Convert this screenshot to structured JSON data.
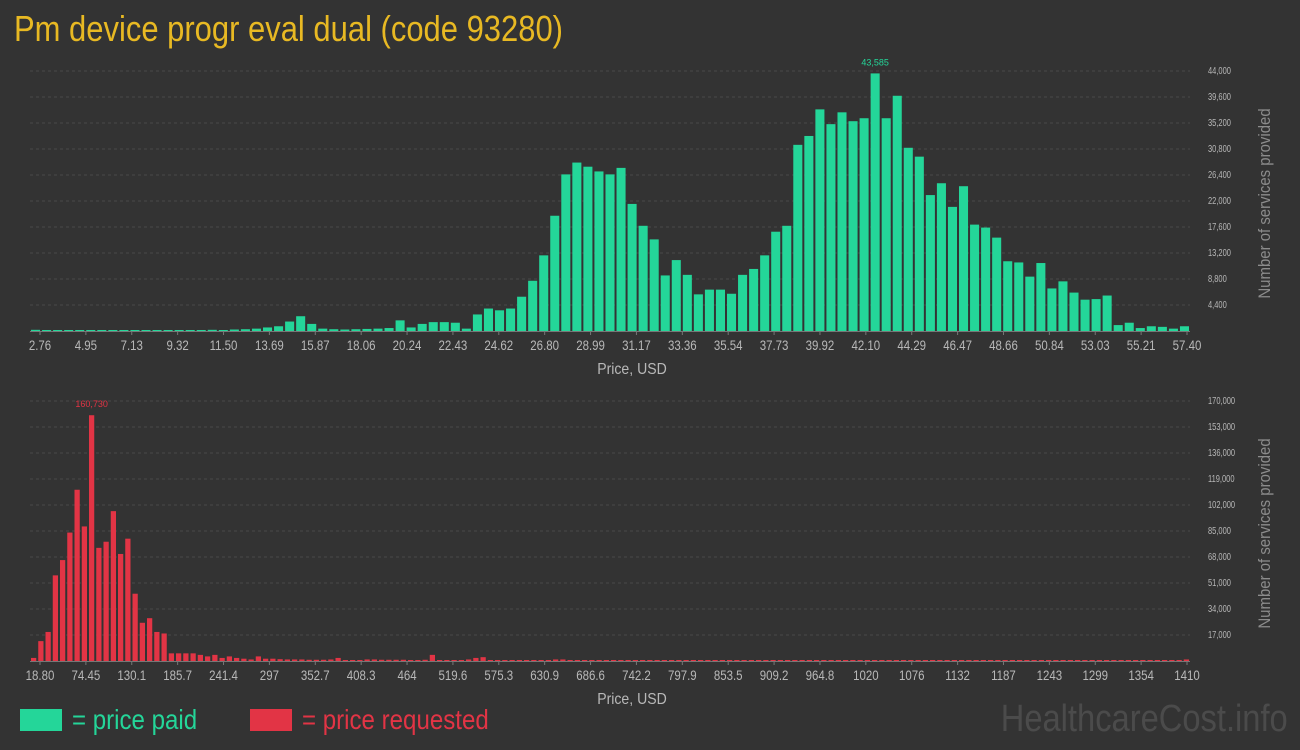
{
  "page": {
    "title": "Pm device progr eval dual (code 93280)",
    "watermark": "HealthcareCost.info"
  },
  "legend": {
    "paid_label": "= price paid",
    "requested_label": "= price requested",
    "paid_color": "#24d699",
    "requested_color": "#e23445"
  },
  "chart_data": [
    {
      "type": "bar",
      "name": "price paid",
      "color": "#24d699",
      "xlabel": "Price, USD",
      "ylabel": "Number of services provided",
      "ylim": [
        0,
        44500
      ],
      "yticks": [
        4400,
        8800,
        13200,
        17600,
        22000,
        26400,
        30800,
        35200,
        39600,
        44000
      ],
      "ytick_labels": [
        "4,400",
        "8,800",
        "13,200",
        "17,600",
        "22,000",
        "26,400",
        "30,800",
        "35,200",
        "39,600",
        "44,000"
      ],
      "xtick_labels": [
        "2.76",
        "4.95",
        "7.13",
        "9.32",
        "11.50",
        "13.69",
        "15.87",
        "18.06",
        "20.24",
        "22.43",
        "24.62",
        "26.80",
        "28.99",
        "31.17",
        "33.36",
        "35.54",
        "37.73",
        "39.92",
        "42.10",
        "44.29",
        "46.47",
        "48.66",
        "50.84",
        "53.03",
        "55.21",
        "57.40"
      ],
      "x_range": [
        2.76,
        57.4
      ],
      "peak_label": "43,585",
      "grid": true,
      "values": [
        200,
        50,
        50,
        50,
        50,
        50,
        50,
        50,
        50,
        80,
        150,
        100,
        50,
        80,
        120,
        100,
        200,
        100,
        250,
        300,
        400,
        600,
        800,
        1600,
        2500,
        1200,
        400,
        300,
        250,
        300,
        350,
        400,
        500,
        1800,
        600,
        1200,
        1500,
        1500,
        1400,
        400,
        2800,
        3800,
        3500,
        3800,
        5800,
        8500,
        12800,
        19500,
        26500,
        28500,
        27800,
        27000,
        26500,
        27600,
        21500,
        17800,
        15500,
        9400,
        12000,
        9500,
        6200,
        7000,
        7000,
        6300,
        9500,
        10500,
        12800,
        16800,
        17800,
        31500,
        33000,
        37500,
        35000,
        37000,
        35500,
        36000,
        43585,
        36000,
        39800,
        31000,
        29500,
        23000,
        25000,
        21000,
        24500,
        18000,
        17500,
        15800,
        11800,
        11600,
        9200,
        11500,
        7200,
        8400,
        6500,
        5300,
        5400,
        6000,
        1000,
        1400,
        500,
        800,
        700,
        400,
        800
      ]
    },
    {
      "type": "bar",
      "name": "price requested",
      "color": "#e23445",
      "xlabel": "Price, USD",
      "ylabel": "Number of services provided",
      "ylim": [
        0,
        172000
      ],
      "yticks": [
        17000,
        34000,
        51000,
        68000,
        85000,
        102000,
        119000,
        136000,
        153000,
        170000
      ],
      "ytick_labels": [
        "17,000",
        "34,000",
        "51,000",
        "68,000",
        "85,000",
        "102,000",
        "119,000",
        "136,000",
        "153,000",
        "170,000"
      ],
      "xtick_labels": [
        "18.80",
        "74.45",
        "130.1",
        "185.7",
        "241.4",
        "297",
        "352.7",
        "408.3",
        "464",
        "519.6",
        "575.3",
        "630.9",
        "686.6",
        "742.2",
        "797.9",
        "853.5",
        "909.2",
        "964.8",
        "1020",
        "1076",
        "1132",
        "1187",
        "1243",
        "1299",
        "1354",
        "1410"
      ],
      "x_range": [
        18.8,
        1410
      ],
      "peak_label": "160,730",
      "grid": true,
      "values": [
        2000,
        13000,
        19000,
        56000,
        66000,
        84000,
        112000,
        88000,
        160730,
        74000,
        78000,
        98000,
        70000,
        80000,
        44000,
        25000,
        28000,
        19000,
        18000,
        5000,
        5000,
        5000,
        5000,
        4000,
        3000,
        4000,
        2000,
        3000,
        2000,
        1500,
        1000,
        3000,
        1500,
        1500,
        1200,
        1000,
        1000,
        1000,
        800,
        800,
        800,
        1000,
        2000,
        500,
        500,
        500,
        1000,
        1000,
        800,
        800,
        800,
        800,
        500,
        500,
        800,
        4000,
        500,
        500,
        500,
        500,
        1000,
        2000,
        2500,
        500,
        500,
        500,
        300,
        300,
        300,
        300,
        300,
        300,
        1000,
        1000,
        300,
        300,
        300,
        300,
        300,
        300,
        300,
        300,
        300,
        300,
        300,
        300,
        300,
        300,
        300,
        300,
        300,
        300,
        300,
        300,
        300,
        300,
        300,
        300,
        300,
        300,
        300,
        300,
        300,
        300,
        300,
        300,
        300,
        300,
        300,
        300,
        300,
        300,
        300,
        300,
        300,
        300,
        300,
        300,
        300,
        300,
        300,
        300,
        300,
        300,
        300,
        300,
        300,
        300,
        300,
        300,
        300,
        300,
        300,
        300,
        300,
        300,
        300,
        300,
        300,
        300,
        300,
        300,
        300,
        300,
        300,
        300,
        300,
        300,
        300,
        300,
        300,
        300,
        300,
        300,
        300,
        300,
        300,
        300,
        300,
        1000
      ]
    }
  ]
}
